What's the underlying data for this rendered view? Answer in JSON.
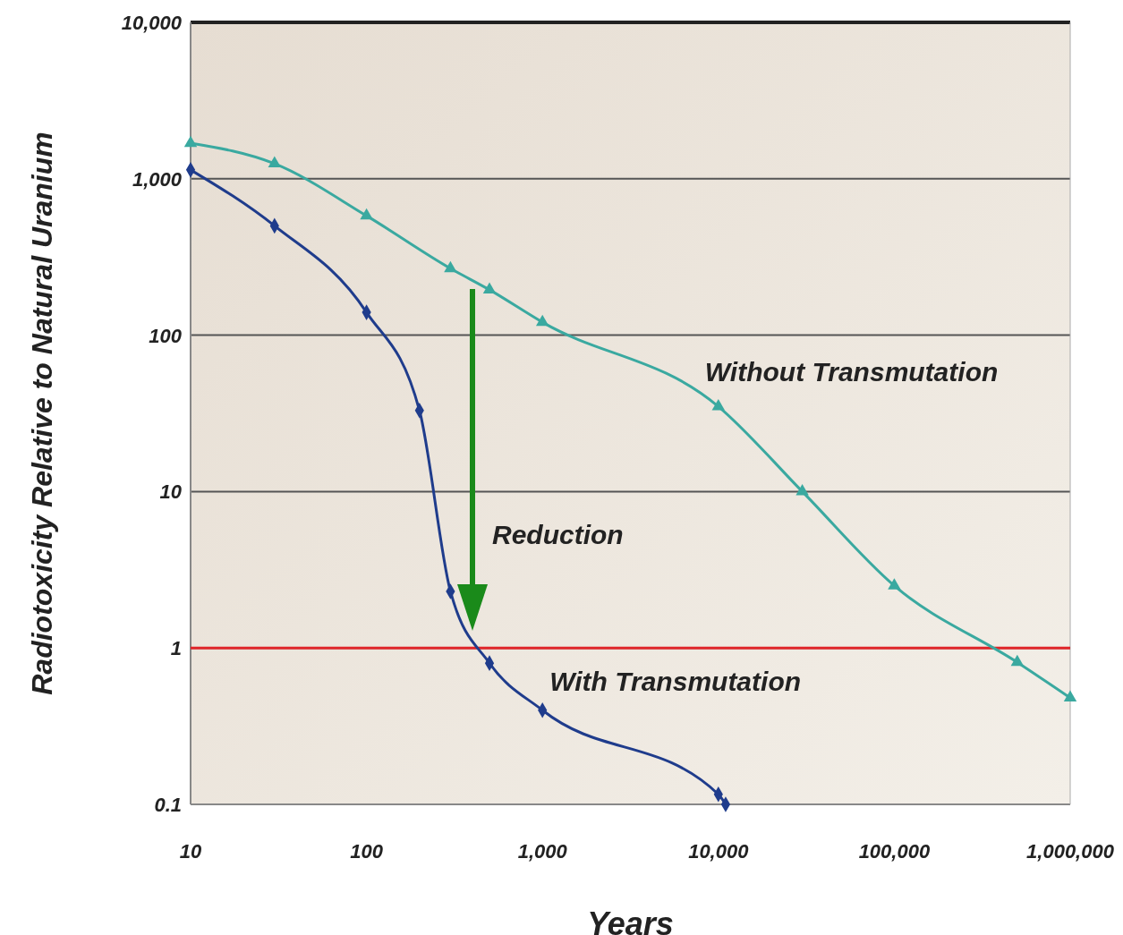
{
  "chart_data": {
    "type": "line",
    "xlabel": "Years",
    "ylabel": "Radiotoxicity Relative to Natural Uranium",
    "log": "xy",
    "xlim": [
      10,
      1000000
    ],
    "ylim": [
      0.1,
      10000
    ],
    "xticks": [
      10,
      100,
      {
        "value": 1000,
        "label": "1,000"
      },
      {
        "value": 10000,
        "label": "10,000"
      },
      {
        "value": 100000,
        "label": "100,000"
      },
      {
        "value": 1000000,
        "label": "1,000,000"
      }
    ],
    "yticks": [
      0.1,
      1,
      10,
      100,
      {
        "value": 1000,
        "label": "1,000"
      },
      {
        "value": 10000,
        "label": "10,000"
      }
    ],
    "grid": "y",
    "line_style": "solid",
    "series": [
      {
        "name": "Without Transmutation",
        "color": "#3aa9a0",
        "marker": "triangle",
        "x": [
          10,
          30,
          100,
          300,
          500,
          1000,
          10000,
          30000,
          100000,
          500000,
          1000000
        ],
        "values": [
          1690,
          1250,
          580,
          267,
          195,
          121,
          35,
          10,
          2.5,
          0.81,
          0.48
        ]
      },
      {
        "name": "With Transmutation",
        "color": "#1f3c8c",
        "marker": "diamond",
        "x": [
          10,
          30,
          100,
          200,
          300,
          500,
          1000,
          10000,
          11000
        ],
        "values": [
          1140,
          500,
          140,
          33,
          2.3,
          0.8,
          0.4,
          0.116,
          0.1
        ]
      }
    ],
    "ref_lines": [
      {
        "axis": "y",
        "value": 1,
        "color": "#e0262a"
      }
    ],
    "annotations": [
      "Reduction"
    ]
  }
}
